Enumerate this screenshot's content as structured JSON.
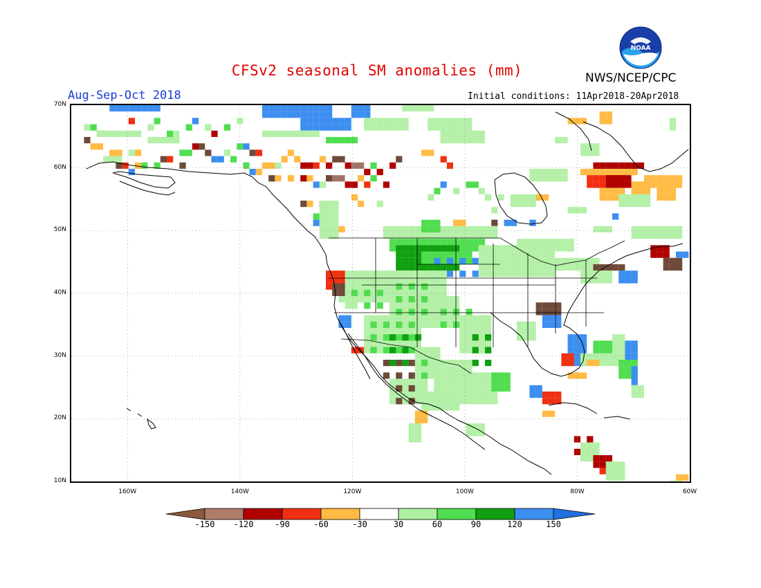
{
  "title": "CFSv2 seasonal SM anomalies (mm)",
  "season": "Aug-Sep-Oct 2018",
  "agency": "NWS/NCEP/CPC",
  "initial_conditions": "Initial conditions: 11Apr2018-20Apr2018",
  "logo_text": "NOAA",
  "lat_labels": [
    "70N",
    "60N",
    "50N",
    "40N",
    "30N",
    "20N",
    "10N"
  ],
  "lon_labels": [
    "160W",
    "140W",
    "120W",
    "100W",
    "80W",
    "60W"
  ],
  "colorbar": {
    "labels": [
      "-150",
      "-120",
      "-90",
      "-60",
      "-30",
      "30",
      "60",
      "90",
      "120",
      "150"
    ],
    "colors": [
      "#8b5a3c",
      "#b07c6a",
      "#b00000",
      "#f03010",
      "#ffbb44",
      "#ffffff",
      "#aef0a0",
      "#50dd50",
      "#10a010",
      "#3c8ef0",
      "#2070e0"
    ]
  },
  "palette": {
    "dbrown": "#6e4a3a",
    "brown": "#a0746a",
    "dred": "#b00000",
    "red": "#f03010",
    "orange": "#ffbb44",
    "lgreen": "#b4f0a8",
    "green": "#50dd50",
    "dgreen": "#10a010",
    "blue": "#3c8ef0"
  }
}
